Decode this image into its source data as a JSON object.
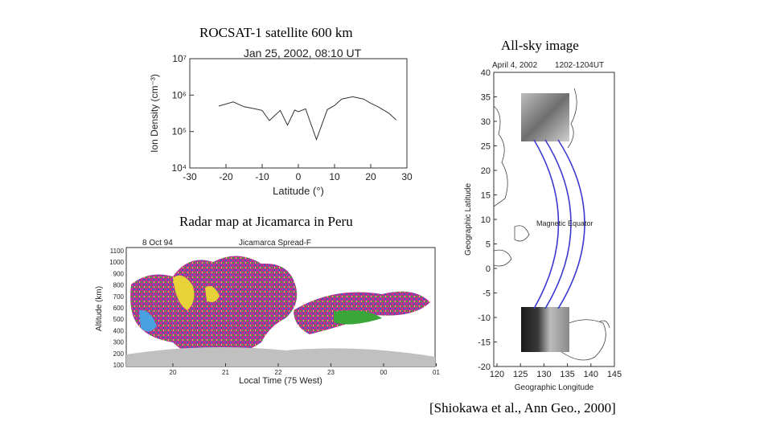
{
  "captions": {
    "rocsat": "ROCSAT-1 satellite 600 km",
    "allsky": "All-sky image",
    "radar": "Radar map at Jicamarca in Peru",
    "citation": "[Shiokawa et al., Ann Geo., 2000]"
  },
  "ion_plot": {
    "title": "Jan 25, 2002, 08:10 UT",
    "xlabel": "Latitude (°)",
    "ylabel": "Ion Density (cm⁻³)",
    "xticks": [
      "-30",
      "-20",
      "-10",
      "0",
      "10",
      "20",
      "30"
    ],
    "yticks": [
      "10⁷",
      "10⁶",
      "10⁵",
      "10⁴"
    ]
  },
  "radar_plot": {
    "title_left": "8 Oct 94",
    "title_right": "Jicamarca Spread-F",
    "ylabel": "Altitude (km)",
    "xlabel": "Local Time (75 West)",
    "yticks": [
      "1100",
      "1000",
      "900",
      "800",
      "700",
      "600",
      "500",
      "400",
      "300",
      "200",
      "100"
    ],
    "xticks": [
      "20",
      "21",
      "22",
      "23",
      "00",
      "01"
    ]
  },
  "map_plot": {
    "title_left": "April 4, 2002",
    "title_right": "1202-1204UT",
    "ylabel": "Geographic Latitude",
    "xlabel": "Geographic Longitude",
    "equator_label": "Magnetic Equator",
    "yticks": [
      "40",
      "35",
      "30",
      "25",
      "20",
      "15",
      "10",
      "5",
      "0",
      "-5",
      "-10",
      "-15",
      "-20"
    ],
    "xticks": [
      "120",
      "125",
      "130",
      "135",
      "140",
      "145"
    ]
  },
  "chart_data": [
    {
      "type": "line",
      "title": "Jan 25, 2002, 08:10 UT",
      "xlabel": "Latitude (°)",
      "ylabel": "Ion Density (cm⁻³)",
      "xlim": [
        -30,
        30
      ],
      "ylim": [
        10000,
        10000000
      ],
      "yscale": "log",
      "x": [
        -22,
        -18,
        -15,
        -12,
        -10,
        -8,
        -5,
        -3,
        -1,
        0,
        2,
        5,
        8,
        10,
        12,
        15,
        18,
        20,
        22,
        25,
        27
      ],
      "y": [
        500000,
        650000,
        480000,
        420000,
        380000,
        200000,
        380000,
        150000,
        390000,
        350000,
        420000,
        60000,
        400000,
        520000,
        780000,
        900000,
        780000,
        600000,
        480000,
        320000,
        210000
      ]
    }
  ]
}
